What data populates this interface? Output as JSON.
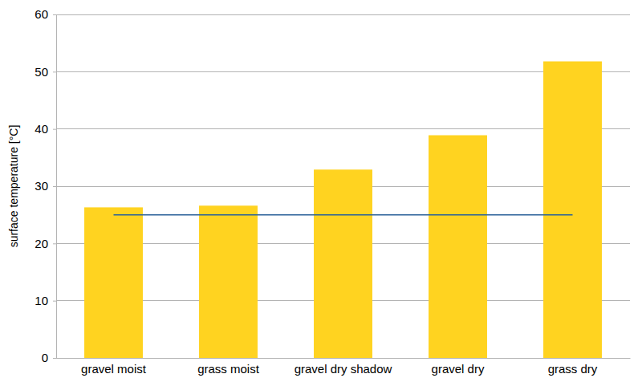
{
  "chart_data": {
    "type": "bar",
    "y_label": "surface temperature [°C]",
    "categories": [
      "gravel moist",
      "grass moist",
      "gravel dry shadow",
      "gravel dry",
      "grass dry"
    ],
    "series": [
      {
        "type": "bar",
        "color": "#ffd320",
        "values": [
          26.3,
          26.6,
          32.9,
          38.9,
          51.8
        ]
      },
      {
        "type": "line",
        "color": "#2a6099",
        "values": [
          25,
          25,
          25,
          25,
          25
        ]
      }
    ],
    "ylim": [
      0,
      60
    ],
    "yticks": [
      0,
      10,
      20,
      30,
      40,
      50,
      60
    ],
    "grid": true
  }
}
